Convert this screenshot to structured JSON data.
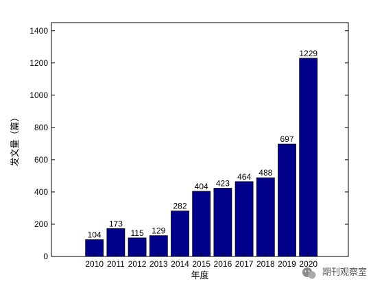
{
  "chart_data": {
    "type": "bar",
    "categories": [
      "2010",
      "2011",
      "2012",
      "2013",
      "2014",
      "2015",
      "2016",
      "2017",
      "2018",
      "2019",
      "2020"
    ],
    "values": [
      104,
      173,
      115,
      129,
      282,
      404,
      423,
      464,
      488,
      697,
      1229
    ],
    "data_labels": [
      "104",
      "173",
      "115",
      "129",
      "282",
      "404",
      "423",
      "464",
      "488",
      "697",
      "1229"
    ],
    "title": "",
    "xlabel": "年度",
    "ylabel": "发文量（篇）",
    "ylim": [
      0,
      1450
    ],
    "yticks": [
      0,
      200,
      400,
      600,
      800,
      1000,
      1200,
      1400
    ],
    "ytick_labels": [
      "0",
      "200",
      "400",
      "600",
      "800",
      "1000",
      "1200",
      "1400"
    ],
    "bar_color": "#00008B",
    "grid": false,
    "legend": "none"
  },
  "watermark": {
    "text": "期刊观察室",
    "icon": "wechat-icon"
  }
}
